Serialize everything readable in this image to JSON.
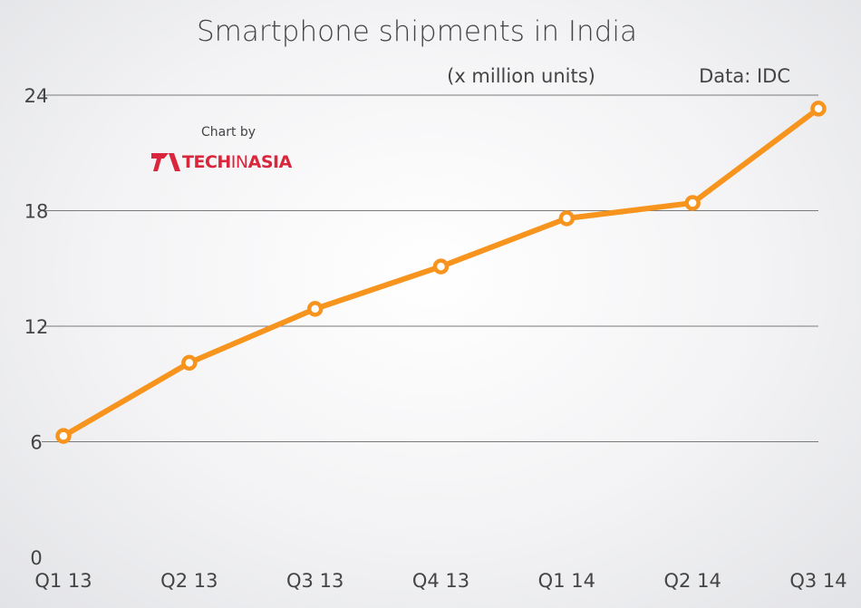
{
  "chart_data": {
    "type": "line",
    "title": "Smartphone shipments in India",
    "subtitle": "(x million units)",
    "source": "Data: IDC",
    "categories": [
      "Q1 13",
      "Q2 13",
      "Q3 13",
      "Q4 13",
      "Q1 14",
      "Q2 14",
      "Q3 14"
    ],
    "series": [
      {
        "values": [
          6.3,
          10.1,
          12.9,
          15.1,
          17.6,
          18.4,
          23.3
        ]
      }
    ],
    "yticks": [
      0,
      6,
      12,
      18,
      24
    ],
    "ylim": [
      0,
      24
    ],
    "grid": true,
    "colors": {
      "line": "#f7941d",
      "marker_fill": "#ffffff",
      "grid": "#7a7a7a"
    }
  },
  "branding": {
    "credit": "Chart by",
    "logo_part1": "TECH",
    "logo_part2": "IN",
    "logo_part3": "ASIA"
  }
}
